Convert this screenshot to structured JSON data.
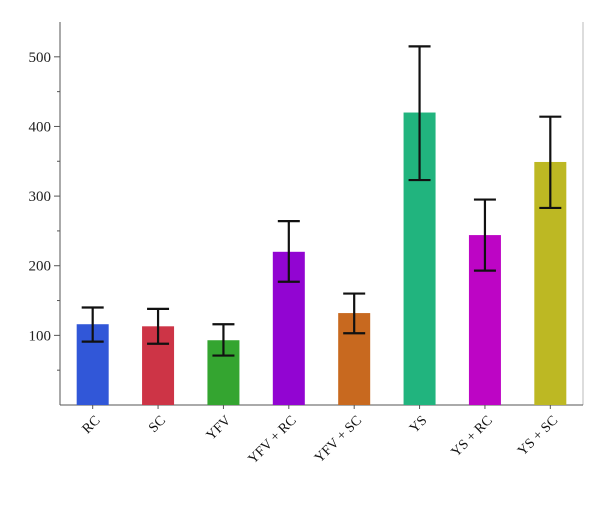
{
  "chart_data": {
    "type": "bar",
    "title": "",
    "xlabel": "",
    "ylabel": "",
    "ylim": [
      0,
      550
    ],
    "yticks": [
      100,
      200,
      300,
      400,
      500
    ],
    "grid": false,
    "legend": "none",
    "categories": [
      "RC",
      "SC",
      "YFV",
      "YFV + RC",
      "YFV + SC",
      "YS",
      "YS + RC",
      "YS + SC"
    ],
    "values": [
      116,
      113,
      93,
      220,
      132,
      420,
      244,
      349
    ],
    "error_low": [
      91,
      88,
      71,
      177,
      103,
      323,
      193,
      283
    ],
    "error_high": [
      140,
      138,
      116,
      264,
      160,
      515,
      295,
      414
    ],
    "colors": [
      "#3157D8",
      "#CD3446",
      "#34A530",
      "#9205D2",
      "#C8691F",
      "#21B47E",
      "#BD05C5",
      "#BDB823"
    ],
    "error_bar_color": "#111111",
    "axis_color": "#555555"
  }
}
